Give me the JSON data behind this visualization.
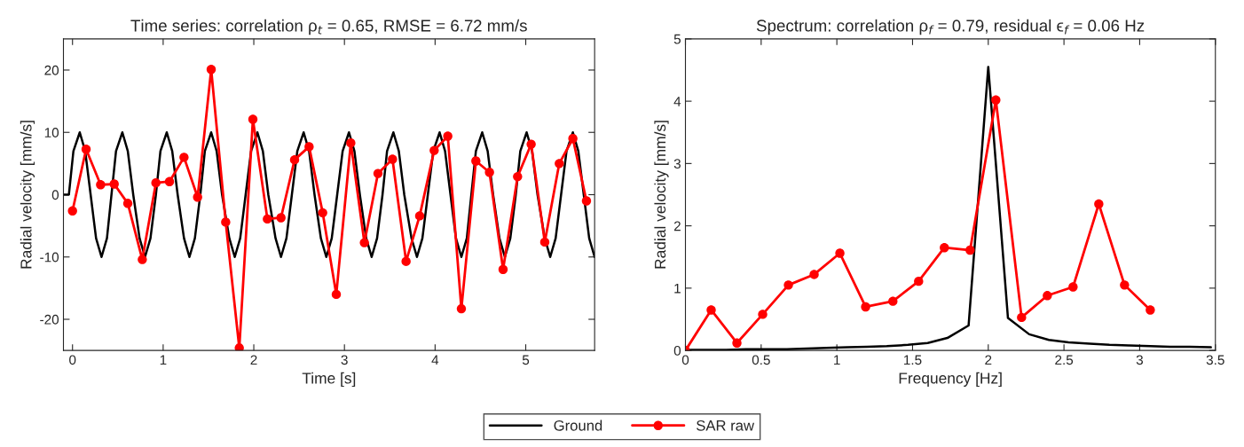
{
  "chart_data": [
    {
      "type": "line",
      "title": "Time series: correlation ρ$_{t}$ = 0.65, RMSE = 6.72 mm/s",
      "xlabel": "Time [s]",
      "ylabel": "Radial velocity [mm/s]",
      "xlim": [
        -0.1,
        5.76
      ],
      "ylim": [
        -25,
        25
      ],
      "xticks": [
        0,
        1,
        2,
        3,
        4,
        5
      ],
      "yticks": [
        -20,
        -10,
        0,
        10,
        20
      ],
      "grid": false,
      "legend": "bottom",
      "series": [
        {
          "name": "Ground",
          "color": "#000000",
          "marker": "none",
          "x": [
            -0.1,
            -0.04,
            0.01,
            0.08,
            0.14,
            0.2,
            0.26,
            0.32,
            0.38,
            0.43,
            0.48,
            0.55,
            0.61,
            0.67,
            0.74,
            0.8,
            0.86,
            0.92,
            0.97,
            1.04,
            1.1,
            1.16,
            1.23,
            1.29,
            1.35,
            1.41,
            1.46,
            1.53,
            1.59,
            1.65,
            1.73,
            1.79,
            1.85,
            1.91,
            1.97,
            2.04,
            2.1,
            2.16,
            2.24,
            2.3,
            2.36,
            2.42,
            2.48,
            2.55,
            2.61,
            2.67,
            2.74,
            2.8,
            2.86,
            2.92,
            2.98,
            3.05,
            3.11,
            3.17,
            3.24,
            3.3,
            3.36,
            3.42,
            3.47,
            3.54,
            3.6,
            3.66,
            3.74,
            3.8,
            3.86,
            3.92,
            3.98,
            4.05,
            4.11,
            4.17,
            4.23,
            4.29,
            4.35,
            4.4,
            4.45,
            4.52,
            4.58,
            4.64,
            4.71,
            4.77,
            4.83,
            4.89,
            4.94,
            5.01,
            5.07,
            5.13,
            5.21,
            5.27,
            5.33,
            5.39,
            5.45,
            5.52,
            5.58,
            5.64,
            5.7,
            5.76
          ],
          "values": [
            0,
            0,
            7,
            10,
            7,
            0,
            -7,
            -10,
            -7,
            0,
            7,
            10,
            7,
            0,
            -7,
            -10,
            -7,
            0,
            7,
            10,
            7,
            0,
            -7,
            -10,
            -7,
            0,
            7,
            10,
            7,
            0,
            -7,
            -10,
            -7,
            0,
            7,
            10,
            7,
            0,
            -7,
            -10,
            -7,
            0,
            7,
            10,
            7,
            0,
            -7,
            -10,
            -7,
            0,
            7,
            10,
            7,
            0,
            -7,
            -10,
            -7,
            0,
            7,
            10,
            7,
            0,
            -7,
            -10,
            -7,
            0,
            7,
            10,
            7,
            0,
            -7,
            -10,
            -7,
            0,
            7,
            10,
            7,
            0,
            -7,
            -10,
            -7,
            0,
            7,
            10,
            7,
            0,
            -7,
            -10,
            -7,
            0,
            7,
            10,
            7,
            0,
            -7,
            -10
          ]
        },
        {
          "name": "SAR raw",
          "color": "#ff0000",
          "marker": "circle",
          "x": [
            0,
            0.15,
            0.31,
            0.46,
            0.61,
            0.77,
            0.92,
            1.07,
            1.23,
            1.38,
            1.53,
            1.69,
            1.84,
            1.99,
            2.15,
            2.3,
            2.45,
            2.61,
            2.76,
            2.91,
            3.07,
            3.22,
            3.37,
            3.53,
            3.68,
            3.83,
            3.99,
            4.14,
            4.29,
            4.45,
            4.6,
            4.75,
            4.91,
            5.06,
            5.21,
            5.37,
            5.52,
            5.67
          ],
          "values": [
            -2.6,
            7.3,
            1.6,
            1.7,
            -1.4,
            -10.4,
            1.9,
            2.1,
            6.0,
            -0.4,
            20.1,
            -4.4,
            -24.6,
            12.1,
            -3.9,
            -3.7,
            5.6,
            7.7,
            -2.9,
            -16.0,
            8.3,
            -7.7,
            3.4,
            5.7,
            -10.7,
            -3.4,
            7.1,
            9.4,
            -18.3,
            5.4,
            3.6,
            -12.0,
            2.9,
            8.1,
            -7.6,
            5.0,
            9.0,
            -1.0
          ]
        }
      ]
    },
    {
      "type": "line",
      "title": "Spectrum: correlation ρ$_{f}$ = 0.79, residual ϵ$_{f}$ = 0.06 Hz",
      "xlabel": "Frequency [Hz]",
      "ylabel": "Radial velocity [mm/s]",
      "xlim": [
        0,
        3.5
      ],
      "ylim": [
        0,
        5
      ],
      "xticks": [
        0,
        0.5,
        1,
        1.5,
        2,
        2.5,
        3,
        3.5
      ],
      "yticks": [
        0,
        1,
        2,
        3,
        4,
        5
      ],
      "grid": false,
      "legend": "bottom",
      "series": [
        {
          "color": "#000000",
          "marker": "none",
          "x": [
            0,
            0.13,
            0.27,
            0.4,
            0.53,
            0.67,
            0.8,
            0.93,
            1.07,
            1.2,
            1.33,
            1.47,
            1.6,
            1.73,
            1.87,
            2.0,
            2.13,
            2.27,
            2.4,
            2.53,
            2.67,
            2.8,
            2.93,
            3.07,
            3.2,
            3.33,
            3.47
          ],
          "values": [
            0.01,
            0.01,
            0.01,
            0.02,
            0.02,
            0.02,
            0.03,
            0.04,
            0.05,
            0.06,
            0.07,
            0.09,
            0.12,
            0.2,
            0.4,
            4.55,
            0.52,
            0.26,
            0.17,
            0.13,
            0.11,
            0.09,
            0.08,
            0.07,
            0.06,
            0.06,
            0.05
          ]
        },
        {
          "color": "#ff0000",
          "marker": "circle",
          "x": [
            0,
            0.17,
            0.34,
            0.51,
            0.68,
            0.85,
            1.02,
            1.19,
            1.37,
            1.54,
            1.71,
            1.88,
            2.05,
            2.22,
            2.39,
            2.56,
            2.73,
            2.9,
            3.07
          ],
          "values": [
            0,
            0.65,
            0.12,
            0.58,
            1.05,
            1.22,
            1.56,
            0.7,
            0.79,
            1.11,
            1.65,
            1.61,
            4.02,
            0.53,
            0.88,
            1.02,
            2.35,
            1.05,
            0.65
          ]
        }
      ]
    }
  ]
}
